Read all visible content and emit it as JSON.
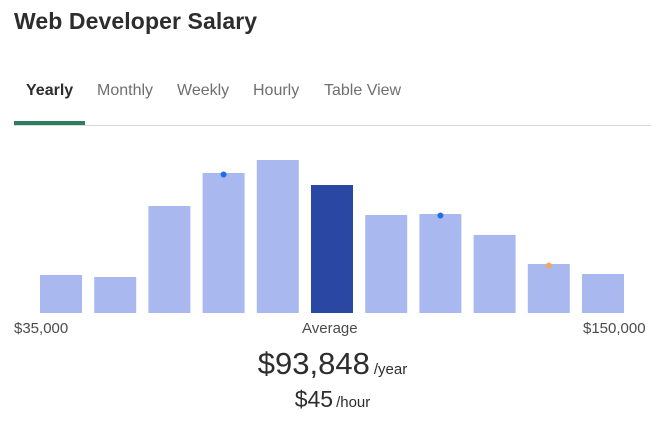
{
  "page": {
    "title": "Web Developer Salary"
  },
  "tabs": [
    {
      "label": "Yearly",
      "active": true
    },
    {
      "label": "Monthly",
      "active": false
    },
    {
      "label": "Weekly",
      "active": false
    },
    {
      "label": "Hourly",
      "active": false
    },
    {
      "label": "Table View",
      "active": false
    }
  ],
  "chart_data": {
    "type": "bar",
    "title": "",
    "xlabel": "",
    "ylabel": "",
    "x_range_labels": {
      "min": "$35,000",
      "center": "Average",
      "max": "$150,000"
    },
    "categories": [
      "1",
      "2",
      "3",
      "4",
      "5",
      "6",
      "7",
      "8",
      "9",
      "10",
      "11"
    ],
    "values": [
      38,
      36,
      107,
      140,
      153,
      128,
      98,
      99,
      78,
      49,
      39
    ],
    "ylim": [
      0,
      160
    ],
    "highlight_index": 5,
    "colors": {
      "bar": "#a9b9ef",
      "highlight_bar": "#2a48a3",
      "blue_marker": "#1f6ee6",
      "orange_marker": "#f2aa58"
    },
    "markers": [
      {
        "index": 3,
        "color": "blue"
      },
      {
        "index": 7,
        "color": "blue"
      },
      {
        "index": 9,
        "color": "orange"
      }
    ],
    "grid": false,
    "legend": false
  },
  "summary": {
    "yearly_value": "$93,848",
    "yearly_unit": "/year",
    "hourly_value": "$45",
    "hourly_unit": "/hour"
  },
  "theme": {
    "accent_green": "#2e7d5f"
  }
}
